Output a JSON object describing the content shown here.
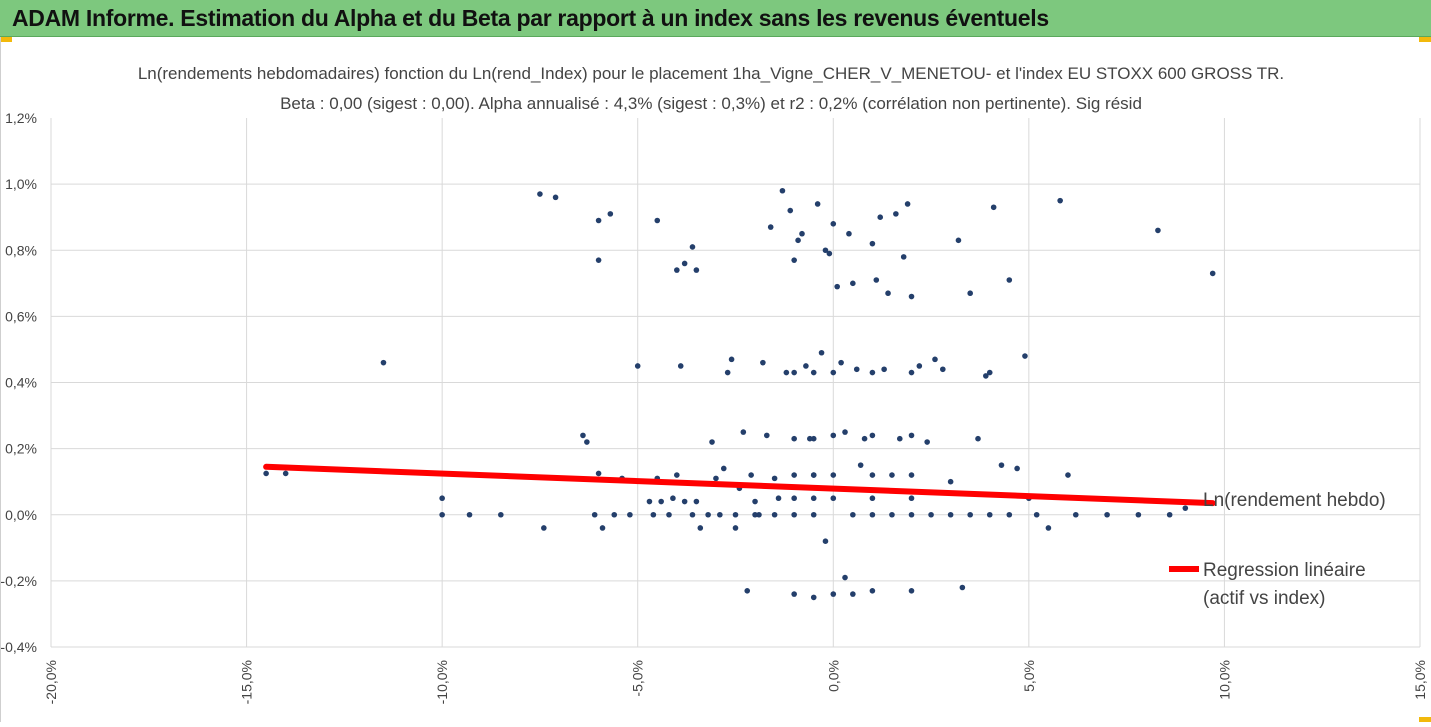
{
  "banner": {
    "title": "ADAM Informe. Estimation du Alpha et du Beta par rapport à un index sans les revenus éventuels"
  },
  "colors": {
    "banner": "#7dc87e",
    "corner_accent": "#f2b90c",
    "points": "#243f6b",
    "regression": "#ff0000",
    "grid": "#d9d9d9"
  },
  "chart_data": {
    "type": "scatter",
    "title": "Ln(rendements hebdomadaires) fonction du Ln(rend_Index) pour le placement 1ha_Vigne_CHER_V_MENETOU- et l'index EU STOXX 600 GROSS TR.",
    "subtitle": "Beta : 0,00 (sigest : 0,00). Alpha annualisé : 4,3% (sigest : 0,3%) et r2 : 0,2% (corrélation non pertinente). Sig résid",
    "xlabel": "",
    "ylabel": "",
    "xlim": [
      -0.2,
      0.15
    ],
    "ylim": [
      -0.004,
      0.012
    ],
    "x_ticks": [
      -0.2,
      -0.15,
      -0.1,
      -0.05,
      0.0,
      0.05,
      0.1,
      0.15
    ],
    "x_tick_labels": [
      "-20,0%",
      "-15,0%",
      "-10,0%",
      "-5,0%",
      "0,0%",
      "5,0%",
      "10,0%",
      "15,0%"
    ],
    "y_ticks": [
      -0.004,
      -0.002,
      0.0,
      0.002,
      0.004,
      0.006,
      0.008,
      0.01,
      0.012
    ],
    "y_tick_labels": [
      "-0,4%",
      "-0,2%",
      "0,0%",
      "0,2%",
      "0,4%",
      "0,6%",
      "0,8%",
      "1,0%",
      "1,2%"
    ],
    "grid": "vertical and horizontal",
    "legend_position": "right",
    "series": [
      {
        "name": "Ln(rendement hebdo)",
        "type": "scatter",
        "points": [
          [
            -0.145,
            0.00125
          ],
          [
            -0.14,
            0.00125
          ],
          [
            -0.115,
            0.0046
          ],
          [
            -0.1,
            0.0
          ],
          [
            -0.1,
            0.0005
          ],
          [
            -0.093,
            0.0
          ],
          [
            -0.085,
            0.0
          ],
          [
            -0.074,
            -0.0004
          ],
          [
            -0.075,
            0.0097
          ],
          [
            -0.071,
            0.0096
          ],
          [
            -0.064,
            0.0024
          ],
          [
            -0.063,
            0.0022
          ],
          [
            -0.061,
            0.0
          ],
          [
            -0.06,
            0.00125
          ],
          [
            -0.059,
            -0.0004
          ],
          [
            -0.056,
            0.0
          ],
          [
            -0.054,
            0.0011
          ],
          [
            -0.052,
            0.0
          ],
          [
            -0.05,
            0.0045
          ],
          [
            -0.047,
            0.0004
          ],
          [
            -0.046,
            0.0
          ],
          [
            -0.045,
            0.0011
          ],
          [
            -0.044,
            0.0004
          ],
          [
            -0.042,
            0.0
          ],
          [
            -0.041,
            0.0005
          ],
          [
            -0.04,
            0.0012
          ],
          [
            -0.039,
            0.0045
          ],
          [
            -0.06,
            0.0089
          ],
          [
            -0.057,
            0.0091
          ],
          [
            -0.06,
            0.0077
          ],
          [
            -0.045,
            0.0089
          ],
          [
            -0.04,
            0.0074
          ],
          [
            -0.038,
            0.0076
          ],
          [
            -0.036,
            0.0081
          ],
          [
            -0.035,
            0.0074
          ],
          [
            -0.038,
            0.0004
          ],
          [
            -0.035,
            0.0004
          ],
          [
            -0.036,
            0.0
          ],
          [
            -0.034,
            -0.0004
          ],
          [
            -0.032,
            0.0
          ],
          [
            -0.031,
            0.0022
          ],
          [
            -0.03,
            0.0011
          ],
          [
            -0.029,
            0.0
          ],
          [
            -0.028,
            0.0014
          ],
          [
            -0.027,
            0.0043
          ],
          [
            -0.026,
            0.0047
          ],
          [
            -0.025,
            -0.0004
          ],
          [
            -0.024,
            0.0008
          ],
          [
            -0.023,
            0.0025
          ],
          [
            -0.022,
            -0.0023
          ],
          [
            -0.021,
            0.0012
          ],
          [
            -0.02,
            0.0004
          ],
          [
            -0.019,
            0.0
          ],
          [
            -0.018,
            0.0046
          ],
          [
            -0.017,
            0.0024
          ],
          [
            -0.016,
            0.0087
          ],
          [
            -0.015,
            0.0011
          ],
          [
            -0.014,
            0.0005
          ],
          [
            -0.013,
            0.0098
          ],
          [
            -0.012,
            0.0043
          ],
          [
            -0.011,
            0.0092
          ],
          [
            -0.01,
            0.0077
          ],
          [
            -0.009,
            0.0083
          ],
          [
            -0.008,
            0.0085
          ],
          [
            -0.007,
            0.0045
          ],
          [
            -0.006,
            0.0023
          ],
          [
            -0.005,
            0.0012
          ],
          [
            -0.004,
            0.0094
          ],
          [
            -0.003,
            0.0049
          ],
          [
            -0.002,
            0.008
          ],
          [
            -0.001,
            0.0079
          ],
          [
            0.0,
            0.0088
          ],
          [
            0.001,
            0.0069
          ],
          [
            0.002,
            0.0046
          ],
          [
            0.003,
            0.0025
          ],
          [
            0.004,
            0.0085
          ],
          [
            0.005,
            0.007
          ],
          [
            0.006,
            0.0044
          ],
          [
            0.007,
            0.0015
          ],
          [
            0.008,
            0.0023
          ],
          [
            0.01,
            0.0082
          ],
          [
            0.011,
            0.0071
          ],
          [
            0.012,
            0.009
          ],
          [
            0.013,
            0.0044
          ],
          [
            0.014,
            0.0067
          ],
          [
            0.015,
            0.0012
          ],
          [
            0.016,
            0.0091
          ],
          [
            0.017,
            0.0023
          ],
          [
            0.018,
            0.0078
          ],
          [
            0.019,
            0.0094
          ],
          [
            0.02,
            0.0066
          ],
          [
            0.022,
            0.0045
          ],
          [
            0.024,
            0.0022
          ],
          [
            0.026,
            0.0047
          ],
          [
            0.028,
            0.0044
          ],
          [
            0.03,
            0.001
          ],
          [
            0.032,
            0.0083
          ],
          [
            0.033,
            -0.0022
          ],
          [
            0.035,
            0.0067
          ],
          [
            0.037,
            0.0023
          ],
          [
            0.039,
            0.0042
          ],
          [
            0.04,
            0.0043
          ],
          [
            0.041,
            0.0093
          ],
          [
            0.043,
            0.0015
          ],
          [
            0.045,
            0.0071
          ],
          [
            0.047,
            0.0014
          ],
          [
            0.049,
            0.0048
          ],
          [
            0.05,
            0.0005
          ],
          [
            0.052,
            0.0
          ],
          [
            0.055,
            -0.0004
          ],
          [
            0.058,
            0.0095
          ],
          [
            0.06,
            0.0012
          ],
          [
            0.062,
            0.0
          ],
          [
            0.07,
            0.0
          ],
          [
            0.078,
            0.0
          ],
          [
            0.083,
            0.0086
          ],
          [
            0.086,
            0.0
          ],
          [
            0.09,
            0.0002
          ],
          [
            0.097,
            0.0073
          ],
          [
            -0.025,
            0.0
          ],
          [
            -0.02,
            0.0
          ],
          [
            -0.015,
            0.0
          ],
          [
            -0.01,
            0.0
          ],
          [
            -0.005,
            0.0
          ],
          [
            0.005,
            0.0
          ],
          [
            0.01,
            0.0
          ],
          [
            0.015,
            0.0
          ],
          [
            0.02,
            0.0
          ],
          [
            0.025,
            0.0
          ],
          [
            0.03,
            0.0
          ],
          [
            0.035,
            0.0
          ],
          [
            0.04,
            0.0
          ],
          [
            0.045,
            0.0
          ],
          [
            -0.01,
            -0.0024
          ],
          [
            -0.005,
            -0.0025
          ],
          [
            0.0,
            -0.0024
          ],
          [
            0.005,
            -0.0024
          ],
          [
            0.01,
            -0.0023
          ],
          [
            0.02,
            -0.0023
          ],
          [
            0.003,
            -0.0019
          ],
          [
            -0.002,
            -0.0008
          ],
          [
            -0.01,
            0.0023
          ],
          [
            -0.005,
            0.0023
          ],
          [
            0.0,
            0.0024
          ],
          [
            0.01,
            0.0024
          ],
          [
            0.02,
            0.0024
          ],
          [
            -0.01,
            0.0012
          ],
          [
            -0.005,
            0.0012
          ],
          [
            0.0,
            0.0012
          ],
          [
            0.01,
            0.0012
          ],
          [
            0.02,
            0.0012
          ],
          [
            -0.01,
            0.0005
          ],
          [
            -0.005,
            0.0005
          ],
          [
            0.0,
            0.0005
          ],
          [
            0.01,
            0.0005
          ],
          [
            0.02,
            0.0005
          ],
          [
            -0.01,
            0.0043
          ],
          [
            -0.005,
            0.0043
          ],
          [
            0.0,
            0.0043
          ],
          [
            0.01,
            0.0043
          ],
          [
            0.02,
            0.0043
          ]
        ]
      },
      {
        "name": "Regression linéaire (actif vs index)",
        "type": "line",
        "points": [
          [
            -0.145,
            0.00145
          ],
          [
            0.097,
            0.00035
          ]
        ]
      }
    ]
  }
}
